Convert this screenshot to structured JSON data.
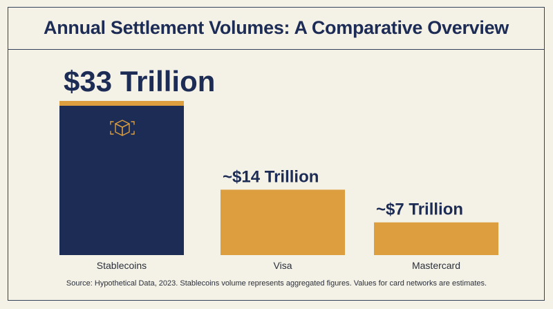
{
  "chart_data": {
    "type": "bar",
    "title": "Annual Settlement Volumes: A Comparative Overview",
    "categories": [
      "Stablecoins",
      "Visa",
      "Mastercard"
    ],
    "values": [
      33,
      14,
      7
    ],
    "unit": "Trillion USD",
    "data_labels": [
      "$33 Trillion",
      "~$14 Trillion",
      "~$7 Trillion"
    ],
    "bar_colors": [
      "#1c2c55",
      "#dc9e3f",
      "#dc9e3f"
    ],
    "highlight_color": "#dc9e3f",
    "xlabel": "",
    "ylabel": "",
    "ylim": [
      0,
      33
    ],
    "grid": false,
    "legend": "none",
    "icon": "crypto-cube-icon"
  },
  "footer": {
    "source": "Source: Hypothetical Data, 2023. Stablecoins volume represents aggregated figures. Values for card networks are estimates."
  }
}
